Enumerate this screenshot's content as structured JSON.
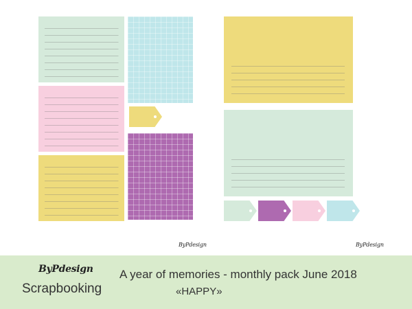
{
  "colors": {
    "green": "#d5eadb",
    "blue": "#bfe6ea",
    "pink": "#f8cfdf",
    "yellow": "#eedb7c",
    "purple": "#ae6ab0",
    "footer_bg": "#d9ebcc"
  },
  "watermark": "ByPdesign",
  "footer": {
    "brand_logo": "ByPdesign",
    "brand_sub": "Scrapbooking",
    "title": "A year of memories - monthly pack June 2018",
    "subtitle": "«HAPPY»"
  },
  "left_page": {
    "cards": [
      {
        "name": "green-lined-card",
        "color": "green",
        "pattern": "lined"
      },
      {
        "name": "blue-grid-card",
        "color": "blue",
        "pattern": "grid"
      },
      {
        "name": "pink-lined-card",
        "color": "pink",
        "pattern": "lined"
      },
      {
        "name": "yellow-lined-card",
        "color": "yellow",
        "pattern": "lined"
      },
      {
        "name": "purple-grid-card",
        "color": "purple",
        "pattern": "grid"
      }
    ],
    "tags": [
      {
        "name": "yellow-tag",
        "color": "yellow"
      }
    ]
  },
  "right_page": {
    "cards": [
      {
        "name": "yellow-journal-card",
        "color": "yellow",
        "pattern": "lined-lower"
      },
      {
        "name": "green-journal-card",
        "color": "green",
        "pattern": "lined-lower"
      }
    ],
    "tags": [
      {
        "name": "green-tag",
        "color": "green"
      },
      {
        "name": "purple-tag",
        "color": "purple"
      },
      {
        "name": "pink-tag",
        "color": "pink"
      },
      {
        "name": "blue-tag",
        "color": "blue"
      }
    ]
  }
}
